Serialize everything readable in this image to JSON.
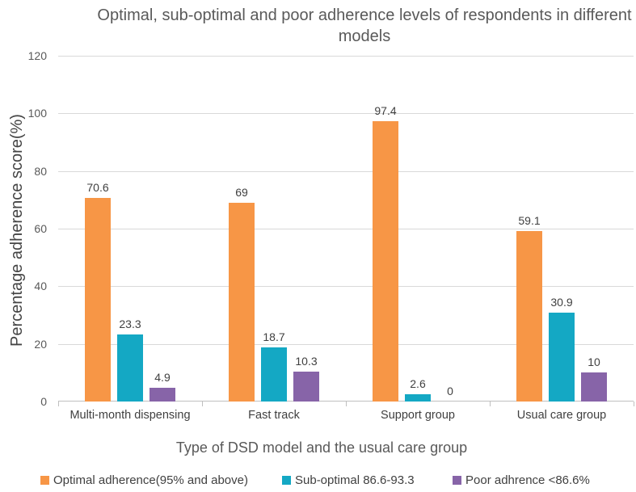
{
  "chart_data": {
    "type": "bar",
    "title": "Optimal, sub-optimal and poor adherence levels of respondents in different models",
    "xlabel": "Type of DSD model and the usual care group",
    "ylabel": "Percentage adherence score(%)",
    "ylim": [
      0,
      120
    ],
    "yticks": [
      0,
      20,
      40,
      60,
      80,
      100,
      120
    ],
    "grid": true,
    "data_labels": true,
    "legend_position": "bottom",
    "categories": [
      "Multi-month dispensing",
      "Fast track",
      "Support group",
      "Usual care group"
    ],
    "series": [
      {
        "name": "Optimal adherence(95% and above)",
        "color": "#F79646",
        "values": [
          70.6,
          69,
          97.4,
          59.1
        ]
      },
      {
        "name": "Sub-optimal 86.6-93.3",
        "color": "#14A8C4",
        "values": [
          23.3,
          18.7,
          2.6,
          30.9
        ]
      },
      {
        "name": "Poor adhrence <86.6%",
        "color": "#8764A8",
        "values": [
          4.9,
          10.3,
          0,
          10
        ]
      }
    ]
  }
}
